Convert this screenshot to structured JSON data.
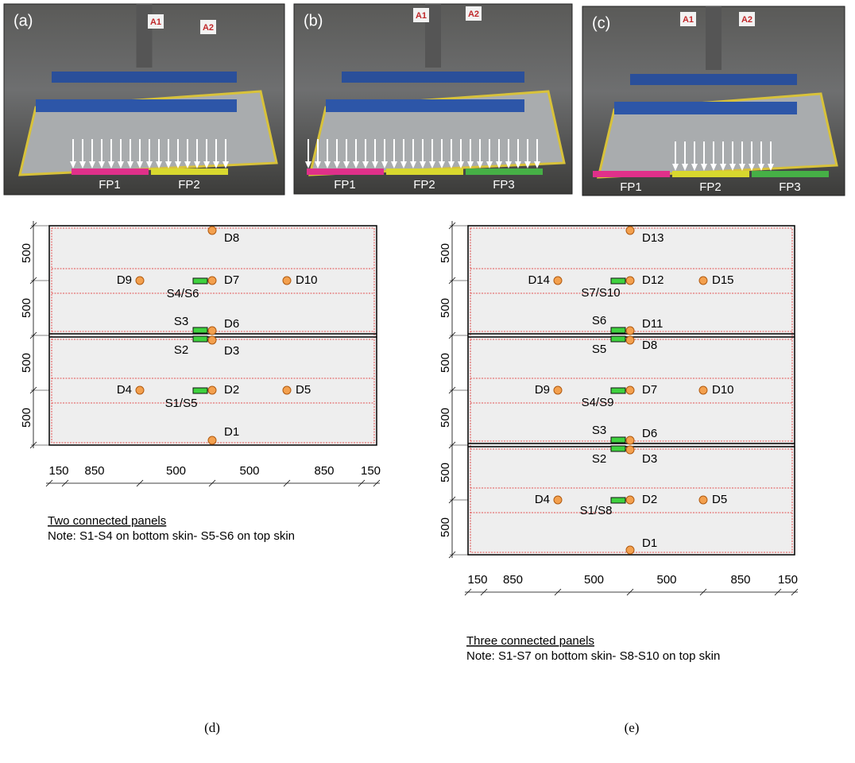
{
  "photos": [
    {
      "label": "(a)",
      "signs": [
        "A1",
        "A2"
      ],
      "strips": [
        "FP1",
        "FP2"
      ]
    },
    {
      "label": "(b)",
      "signs": [
        "A1",
        "A2"
      ],
      "strips": [
        "FP1",
        "FP2",
        "FP3"
      ]
    },
    {
      "label": "(c)",
      "signs": [
        "A1",
        "A2"
      ],
      "strips": [
        "FP1",
        "FP2",
        "FP3"
      ]
    }
  ],
  "diagrams": [
    {
      "sensors": [
        "D1",
        "D2",
        "D3",
        "D4",
        "D5",
        "D6",
        "D7",
        "D8",
        "D9",
        "D10"
      ],
      "gauges": [
        "S1/S5",
        "S2",
        "S3",
        "S4/S6"
      ],
      "vertical_dimensions": [
        500,
        500,
        500,
        500
      ],
      "horizontal_dimensions": [
        150,
        850,
        500,
        500,
        850,
        150
      ],
      "caption": "Two connected panels",
      "note": "Note: S1-S4 on bottom skin- S5-S6 on top skin",
      "label": "(d)"
    },
    {
      "sensors": [
        "D1",
        "D2",
        "D3",
        "D4",
        "D5",
        "D6",
        "D7",
        "D8",
        "D9",
        "D10",
        "D11",
        "D12",
        "D13",
        "D14",
        "D15"
      ],
      "gauges": [
        "S1/S8",
        "S2",
        "S3",
        "S4/S9",
        "S5",
        "S6",
        "S7/S10"
      ],
      "vertical_dimensions": [
        500,
        500,
        500,
        500,
        500,
        500
      ],
      "horizontal_dimensions": [
        150,
        850,
        500,
        500,
        850,
        150
      ],
      "caption": "Three connected panels",
      "note": "Note: S1-S7 on bottom skin- S8-S10 on top skin",
      "label": "(e)"
    }
  ]
}
